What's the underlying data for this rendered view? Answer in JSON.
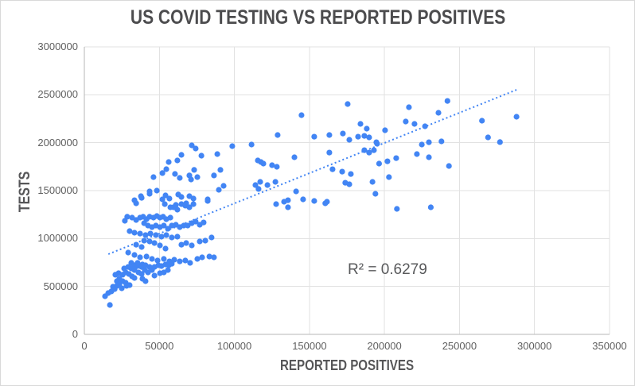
{
  "title": "US COVID TESTING VS REPORTED POSITIVES",
  "r2_label": "R² = 0.6279",
  "colors": {
    "point": "#4285f4",
    "trendline": "#4285f4",
    "gridline": "#e2e2e2",
    "axis_line": "#b7b7b7",
    "title_text": "#4c4c4e",
    "axis_title_text": "#565658",
    "tick_text": "#5f5f5f",
    "r2_text": "#58595b"
  },
  "chart_data": {
    "type": "scatter",
    "title": "US COVID TESTING VS REPORTED POSITIVES",
    "xlabel": "REPORTED POSITIVES",
    "ylabel": "TESTS",
    "xlim": [
      0,
      350000
    ],
    "ylim": [
      0,
      3000000
    ],
    "x_ticks": [
      0,
      50000,
      100000,
      150000,
      200000,
      250000,
      300000,
      350000
    ],
    "y_ticks": [
      0,
      500000,
      1000000,
      1500000,
      2000000,
      2500000,
      3000000
    ],
    "grid": true,
    "legend": "none",
    "marker_radius_px": 3.6,
    "trendline": {
      "style": "dotted",
      "x1": 16000,
      "y1": 837000,
      "x2": 288000,
      "y2": 2552000,
      "r_squared": 0.6279
    },
    "points": [
      [
        13800,
        398000
      ],
      [
        15900,
        431000
      ],
      [
        17000,
        307000
      ],
      [
        18000,
        448000
      ],
      [
        19100,
        497000
      ],
      [
        20200,
        472000
      ],
      [
        20700,
        622000
      ],
      [
        21700,
        555000
      ],
      [
        21700,
        506000
      ],
      [
        22800,
        638000
      ],
      [
        23300,
        580000
      ],
      [
        23300,
        522000
      ],
      [
        24900,
        481000
      ],
      [
        25500,
        622000
      ],
      [
        25500,
        555000
      ],
      [
        26500,
        688000
      ],
      [
        27600,
        646000
      ],
      [
        27600,
        539000
      ],
      [
        28100,
        506000
      ],
      [
        29200,
        704000
      ],
      [
        29700,
        630000
      ],
      [
        30200,
        514000
      ],
      [
        31300,
        746000
      ],
      [
        31300,
        688000
      ],
      [
        31800,
        605000
      ],
      [
        33400,
        721000
      ],
      [
        33400,
        671000
      ],
      [
        33400,
        588000
      ],
      [
        35500,
        746000
      ],
      [
        35500,
        713000
      ],
      [
        36100,
        646000
      ],
      [
        38200,
        704000
      ],
      [
        38200,
        630000
      ],
      [
        38700,
        729000
      ],
      [
        38700,
        580000
      ],
      [
        40300,
        671000
      ],
      [
        40800,
        721000
      ],
      [
        40800,
        555000
      ],
      [
        42400,
        646000
      ],
      [
        43500,
        704000
      ],
      [
        45100,
        671000
      ],
      [
        46700,
        704000
      ],
      [
        46700,
        613000
      ],
      [
        49300,
        721000
      ],
      [
        50400,
        638000
      ],
      [
        51400,
        713000
      ],
      [
        53000,
        646000
      ],
      [
        54100,
        729000
      ],
      [
        55700,
        671000
      ],
      [
        56200,
        721000
      ],
      [
        58300,
        737000
      ],
      [
        37700,
        1442000
      ],
      [
        34500,
        1367000
      ],
      [
        43500,
        1467000
      ],
      [
        54100,
        1450000
      ],
      [
        56700,
        1417000
      ],
      [
        62600,
        1459000
      ],
      [
        64700,
        1434000
      ],
      [
        70000,
        1442000
      ],
      [
        72700,
        1417000
      ],
      [
        82200,
        1392000
      ],
      [
        64700,
        1359000
      ],
      [
        67300,
        1343000
      ],
      [
        70000,
        1326000
      ],
      [
        59400,
        1326000
      ],
      [
        62000,
        1301000
      ],
      [
        28600,
        1227000
      ],
      [
        31800,
        1218000
      ],
      [
        27000,
        1185000
      ],
      [
        34500,
        1193000
      ],
      [
        37100,
        1218000
      ],
      [
        39200,
        1227000
      ],
      [
        41400,
        1202000
      ],
      [
        43500,
        1227000
      ],
      [
        46100,
        1218000
      ],
      [
        48300,
        1235000
      ],
      [
        50400,
        1218000
      ],
      [
        52500,
        1227000
      ],
      [
        54600,
        1202000
      ],
      [
        57300,
        1218000
      ],
      [
        39800,
        1160000
      ],
      [
        42400,
        1135000
      ],
      [
        45100,
        1119000
      ],
      [
        47700,
        1135000
      ],
      [
        50400,
        1119000
      ],
      [
        53000,
        1135000
      ],
      [
        55700,
        1102000
      ],
      [
        58300,
        1135000
      ],
      [
        61000,
        1144000
      ],
      [
        63600,
        1119000
      ],
      [
        66300,
        1135000
      ],
      [
        68900,
        1135000
      ],
      [
        71600,
        1160000
      ],
      [
        74200,
        1177000
      ],
      [
        76900,
        1144000
      ],
      [
        79500,
        1168000
      ],
      [
        30200,
        1077000
      ],
      [
        33400,
        1061000
      ],
      [
        37100,
        1052000
      ],
      [
        40800,
        1036000
      ],
      [
        44000,
        1052000
      ],
      [
        47700,
        1036000
      ],
      [
        51400,
        1019000
      ],
      [
        54600,
        1036000
      ],
      [
        58300,
        1011000
      ],
      [
        62000,
        1019000
      ],
      [
        39800,
        978000
      ],
      [
        43500,
        970000
      ],
      [
        46700,
        953000
      ],
      [
        34500,
        936000
      ],
      [
        38200,
        912000
      ],
      [
        50400,
        928000
      ],
      [
        54100,
        895000
      ],
      [
        64700,
        936000
      ],
      [
        67900,
        953000
      ],
      [
        71600,
        928000
      ],
      [
        76900,
        970000
      ],
      [
        80600,
        978000
      ],
      [
        84800,
        1011000
      ],
      [
        29200,
        854000
      ],
      [
        33400,
        829000
      ],
      [
        37100,
        804000
      ],
      [
        41400,
        812000
      ],
      [
        45100,
        787000
      ],
      [
        48800,
        771000
      ],
      [
        53000,
        787000
      ],
      [
        56700,
        762000
      ],
      [
        59900,
        779000
      ],
      [
        63600,
        762000
      ],
      [
        67300,
        771000
      ],
      [
        70500,
        746000
      ],
      [
        75300,
        787000
      ],
      [
        78500,
        804000
      ],
      [
        83300,
        812000
      ],
      [
        86400,
        804000
      ],
      [
        71600,
        1972000
      ],
      [
        74200,
        1939000
      ],
      [
        98600,
        1964000
      ],
      [
        111400,
        1981000
      ],
      [
        64700,
        1873000
      ],
      [
        78000,
        1865000
      ],
      [
        56200,
        1798000
      ],
      [
        62000,
        1815000
      ],
      [
        88600,
        1881000
      ],
      [
        117700,
        1798000
      ],
      [
        90700,
        1716000
      ],
      [
        54600,
        1724000
      ],
      [
        60400,
        1674000
      ],
      [
        63600,
        1633000
      ],
      [
        46100,
        1641000
      ],
      [
        52000,
        1683000
      ],
      [
        70000,
        1658000
      ],
      [
        71100,
        1616000
      ],
      [
        73200,
        1716000
      ],
      [
        75300,
        1641000
      ],
      [
        86400,
        1658000
      ],
      [
        89600,
        1508000
      ],
      [
        92800,
        1550000
      ],
      [
        43500,
        1492000
      ],
      [
        48300,
        1500000
      ],
      [
        114000,
        1558000
      ],
      [
        116100,
        1517000
      ],
      [
        33400,
        1400000
      ],
      [
        38200,
        1425000
      ],
      [
        52000,
        1409000
      ],
      [
        53600,
        1359000
      ],
      [
        57300,
        1326000
      ],
      [
        61000,
        1351000
      ],
      [
        67900,
        1367000
      ],
      [
        72700,
        1359000
      ],
      [
        82200,
        1409000
      ],
      [
        115600,
        1815000
      ],
      [
        119300,
        1782000
      ],
      [
        125100,
        1765000
      ],
      [
        128300,
        1749000
      ],
      [
        117200,
        1591000
      ],
      [
        122000,
        1558000
      ],
      [
        127300,
        1591000
      ],
      [
        144700,
        2287000
      ],
      [
        184000,
        2196000
      ],
      [
        188200,
        2146000
      ],
      [
        216300,
        2370000
      ],
      [
        214200,
        2221000
      ],
      [
        220000,
        2196000
      ],
      [
        227000,
        2171000
      ],
      [
        229600,
        2005000
      ],
      [
        224900,
        1981000
      ],
      [
        221600,
        1881000
      ],
      [
        229600,
        1848000
      ],
      [
        153200,
        2063000
      ],
      [
        163300,
        2080000
      ],
      [
        172300,
        2096000
      ],
      [
        176600,
        2030000
      ],
      [
        182400,
        2063000
      ],
      [
        186600,
        2071000
      ],
      [
        189800,
        2055000
      ],
      [
        194600,
        2005000
      ],
      [
        186600,
        1922000
      ],
      [
        189800,
        1897000
      ],
      [
        193000,
        1922000
      ],
      [
        195100,
        1989000
      ],
      [
        200400,
        2130000
      ],
      [
        202000,
        1806000
      ],
      [
        207800,
        1839000
      ],
      [
        163300,
        1897000
      ],
      [
        165400,
        1723000
      ],
      [
        171800,
        1698000
      ],
      [
        177600,
        1673000
      ],
      [
        173900,
        1582000
      ],
      [
        176600,
        1566000
      ],
      [
        140000,
        1848000
      ],
      [
        128800,
        2080000
      ],
      [
        141100,
        1492000
      ],
      [
        145800,
        1409000
      ],
      [
        135700,
        1400000
      ],
      [
        153200,
        1392000
      ],
      [
        127800,
        1359000
      ],
      [
        133100,
        1384000
      ],
      [
        135700,
        1326000
      ],
      [
        160600,
        1367000
      ],
      [
        175500,
        2403000
      ],
      [
        161700,
        1384000
      ],
      [
        194000,
        1467000
      ],
      [
        196400,
        1782000
      ],
      [
        203000,
        1641000
      ],
      [
        192000,
        1591000
      ],
      [
        208300,
        1309000
      ],
      [
        230900,
        1326000
      ],
      [
        242000,
        2436000
      ],
      [
        236000,
        2312000
      ],
      [
        265000,
        2229000
      ],
      [
        288000,
        2271000
      ],
      [
        269000,
        2055000
      ],
      [
        277000,
        2006000
      ],
      [
        238000,
        2014000
      ],
      [
        243000,
        1757000
      ]
    ]
  }
}
